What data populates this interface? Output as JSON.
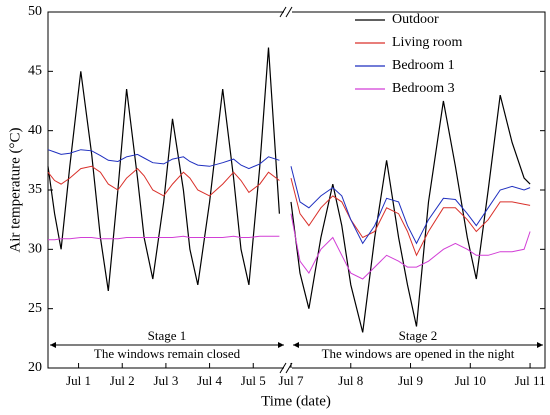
{
  "chart_data": [
    {
      "type": "line",
      "y_label": "Air temperature (°C)",
      "x_label": "Time (date)",
      "ylim": [
        20,
        50
      ],
      "yticks": [
        20,
        25,
        30,
        35,
        40,
        45,
        50
      ],
      "xlim": [
        0.3,
        5.75
      ],
      "xticks": [
        {
          "value": 1,
          "label": "Jul 1"
        },
        {
          "value": 2,
          "label": "Jul 2"
        },
        {
          "value": 3,
          "label": "Jul 3"
        },
        {
          "value": 4,
          "label": "Jul 4"
        },
        {
          "value": 5,
          "label": "Jul 5"
        }
      ],
      "annotations": [
        "Stage 1",
        "The windows remain closed"
      ],
      "legend": "top-right",
      "x": [
        0.3,
        0.45,
        0.6,
        0.8,
        1.05,
        1.3,
        1.5,
        1.68,
        1.9,
        2.1,
        2.35,
        2.5,
        2.7,
        2.95,
        3.15,
        3.4,
        3.55,
        3.73,
        4.0,
        4.3,
        4.55,
        4.72,
        4.9,
        5.15,
        5.35,
        5.6
      ],
      "series": [
        {
          "name": "Outdoor",
          "color": "#000000",
          "values": [
            37,
            33,
            30,
            37,
            45,
            38,
            31,
            26.5,
            35,
            43.5,
            36,
            31,
            27.5,
            34,
            41,
            35,
            30,
            27,
            34,
            43.5,
            36,
            30,
            27,
            37,
            47,
            33
          ]
        },
        {
          "name": "Living room",
          "color": "#d9302a",
          "values": [
            36.5,
            35.8,
            35.5,
            36,
            36.8,
            37,
            36.5,
            35.5,
            35,
            36,
            36.8,
            36.2,
            35,
            34.5,
            35.5,
            36.5,
            36,
            35,
            34.5,
            35.5,
            36.5,
            35.8,
            34.8,
            35.5,
            36.5,
            35.8
          ]
        },
        {
          "name": "Bedroom 1",
          "color": "#1f2fbf",
          "values": [
            38.4,
            38.2,
            38,
            38.1,
            38.4,
            38.3,
            37.9,
            37.5,
            37.4,
            37.8,
            38,
            37.7,
            37.3,
            37.2,
            37.6,
            37.8,
            37.4,
            37.1,
            37,
            37.3,
            37.6,
            37.1,
            36.8,
            37.2,
            37.8,
            37.5
          ]
        },
        {
          "name": "Bedroom 3",
          "color": "#d23fd6",
          "values": [
            30.8,
            30.8,
            30.9,
            30.9,
            31,
            31,
            30.9,
            30.9,
            30.9,
            31,
            31,
            31,
            31,
            31,
            31,
            31.1,
            31,
            31,
            31,
            31,
            31.1,
            31,
            31,
            31.1,
            31.1,
            31.1
          ]
        }
      ]
    },
    {
      "type": "line",
      "ylim": [
        20,
        50
      ],
      "xlim": [
        7,
        11.25
      ],
      "xticks": [
        {
          "value": 7,
          "label": "Jul 7"
        },
        {
          "value": 8,
          "label": "Jul 8"
        },
        {
          "value": 9,
          "label": "Jul 9"
        },
        {
          "value": 10,
          "label": "Jul 10"
        },
        {
          "value": 11,
          "label": "Jul 11"
        }
      ],
      "annotations": [
        "Stage 2",
        "The windows are opened in the night"
      ],
      "x": [
        7.0,
        7.15,
        7.3,
        7.5,
        7.7,
        7.85,
        8.0,
        8.2,
        8.4,
        8.6,
        8.8,
        8.95,
        9.1,
        9.3,
        9.55,
        9.75,
        9.95,
        10.1,
        10.3,
        10.5,
        10.7,
        10.9,
        11.0
      ],
      "series": [
        {
          "color": "#000000",
          "values": [
            34,
            28,
            25,
            31,
            35.5,
            32,
            27,
            23,
            31,
            37.5,
            31,
            27,
            23.5,
            34,
            42.5,
            37,
            31,
            27.5,
            35,
            43,
            39,
            36,
            35.5
          ]
        },
        {
          "color": "#d9302a",
          "values": [
            36,
            33,
            32,
            33.5,
            34.5,
            34,
            32.5,
            31,
            31.5,
            33.5,
            33,
            31.5,
            29.5,
            31.5,
            33.5,
            33.5,
            32.5,
            31.5,
            32.5,
            34,
            34,
            33.8,
            33.7
          ]
        },
        {
          "color": "#1f2fbf",
          "values": [
            37,
            34,
            33.5,
            34.5,
            35.2,
            34.5,
            32.5,
            30.5,
            32,
            34.3,
            34,
            32,
            30.5,
            32.5,
            34.3,
            34.2,
            33,
            32,
            33.5,
            35,
            35.3,
            35,
            35.2
          ]
        },
        {
          "color": "#d23fd6",
          "values": [
            33,
            29,
            28,
            30,
            31,
            29.5,
            28,
            27.5,
            28.5,
            29.5,
            29,
            28.5,
            28.5,
            29,
            30,
            30.5,
            30,
            29.5,
            29.5,
            29.8,
            29.8,
            30,
            31.5
          ]
        }
      ]
    }
  ]
}
